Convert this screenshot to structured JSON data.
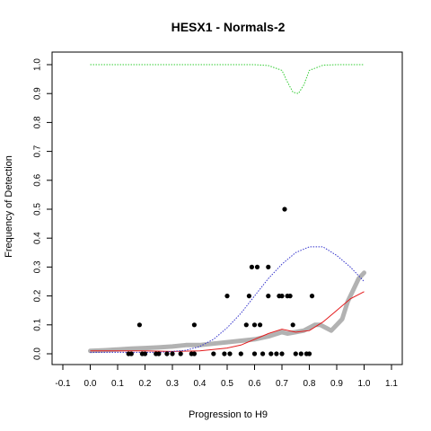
{
  "chart_data": {
    "type": "scatter",
    "title": "HESX1 - Normals-2",
    "xlabel": "Progression to H9",
    "ylabel": "Frequency of Detection",
    "xlim": [
      -0.1,
      1.1
    ],
    "ylim": [
      0,
      1.0
    ],
    "xticks": [
      "-0.1",
      "0.0",
      "0.1",
      "0.2",
      "0.3",
      "0.4",
      "0.5",
      "0.6",
      "0.7",
      "0.8",
      "0.9",
      "1.0",
      "1.1"
    ],
    "xtick_values": [
      -0.1,
      0.0,
      0.1,
      0.2,
      0.3,
      0.4,
      0.5,
      0.6,
      0.7,
      0.8,
      0.9,
      1.0,
      1.1
    ],
    "yticks": [
      "0.0",
      "0.1",
      "0.2",
      "0.3",
      "0.4",
      "0.5",
      "0.6",
      "0.7",
      "0.8",
      "0.9",
      "1.0"
    ],
    "ytick_values": [
      0.0,
      0.1,
      0.2,
      0.3,
      0.4,
      0.5,
      0.6,
      0.7,
      0.8,
      0.9,
      1.0
    ],
    "grid": false,
    "legend": "none",
    "colors": {
      "points": "#000000",
      "smoothed": "#aaaaaa",
      "fit": "#e41a1c",
      "upper": "#3333cc",
      "top": "#33cc33"
    },
    "series": [
      {
        "kind": "points",
        "x": [
          0.14,
          0.15,
          0.18,
          0.19,
          0.2,
          0.24,
          0.25,
          0.28,
          0.3,
          0.33,
          0.37,
          0.38,
          0.38,
          0.45,
          0.49,
          0.5,
          0.51,
          0.55,
          0.57,
          0.58,
          0.59,
          0.6,
          0.6,
          0.61,
          0.62,
          0.63,
          0.65,
          0.65,
          0.66,
          0.68,
          0.69,
          0.7,
          0.7,
          0.71,
          0.72,
          0.73,
          0.74,
          0.75,
          0.77,
          0.79,
          0.8,
          0.81
        ],
        "y": [
          0.0,
          0.0,
          0.1,
          0.0,
          0.0,
          0.0,
          0.0,
          0.0,
          0.0,
          0.0,
          0.0,
          0.1,
          0.0,
          0.0,
          0.0,
          0.2,
          0.0,
          0.0,
          0.1,
          0.2,
          0.3,
          0.1,
          0.0,
          0.3,
          0.1,
          0.0,
          0.2,
          0.3,
          0.0,
          0.0,
          0.2,
          0.2,
          0.0,
          0.5,
          0.2,
          0.2,
          0.1,
          0.0,
          0.0,
          0.0,
          0.0,
          0.2
        ]
      },
      {
        "kind": "smoothed",
        "x": [
          0.0,
          0.05,
          0.1,
          0.15,
          0.2,
          0.25,
          0.3,
          0.35,
          0.4,
          0.45,
          0.5,
          0.55,
          0.6,
          0.65,
          0.7,
          0.72,
          0.75,
          0.78,
          0.8,
          0.82,
          0.84,
          0.86,
          0.88,
          0.9,
          0.92,
          0.94,
          0.96,
          0.98,
          1.0
        ],
        "y": [
          0.01,
          0.012,
          0.015,
          0.018,
          0.02,
          0.022,
          0.025,
          0.03,
          0.03,
          0.035,
          0.04,
          0.045,
          0.05,
          0.06,
          0.075,
          0.07,
          0.075,
          0.08,
          0.09,
          0.1,
          0.1,
          0.09,
          0.08,
          0.1,
          0.12,
          0.18,
          0.22,
          0.26,
          0.28
        ]
      },
      {
        "kind": "fit",
        "x": [
          0.0,
          0.1,
          0.2,
          0.3,
          0.4,
          0.5,
          0.55,
          0.6,
          0.65,
          0.7,
          0.75,
          0.8,
          0.85,
          0.9,
          0.95,
          1.0
        ],
        "y": [
          0.01,
          0.01,
          0.01,
          0.008,
          0.01,
          0.02,
          0.03,
          0.05,
          0.07,
          0.085,
          0.075,
          0.08,
          0.11,
          0.15,
          0.19,
          0.215
        ]
      },
      {
        "kind": "upper",
        "x": [
          0.0,
          0.1,
          0.2,
          0.25,
          0.3,
          0.35,
          0.4,
          0.45,
          0.5,
          0.55,
          0.6,
          0.65,
          0.7,
          0.75,
          0.8,
          0.85,
          0.9,
          0.95,
          1.0
        ],
        "y": [
          0.005,
          0.005,
          0.005,
          0.005,
          0.008,
          0.012,
          0.025,
          0.05,
          0.09,
          0.14,
          0.2,
          0.26,
          0.31,
          0.35,
          0.37,
          0.37,
          0.34,
          0.3,
          0.25
        ]
      },
      {
        "kind": "top",
        "x": [
          0.0,
          0.1,
          0.2,
          0.3,
          0.4,
          0.5,
          0.6,
          0.65,
          0.7,
          0.72,
          0.74,
          0.76,
          0.78,
          0.8,
          0.85,
          0.9,
          1.0
        ],
        "y": [
          1.0,
          1.0,
          1.0,
          1.0,
          1.0,
          1.0,
          1.0,
          0.997,
          0.98,
          0.94,
          0.905,
          0.9,
          0.93,
          0.98,
          0.998,
          1.0,
          1.0
        ]
      }
    ]
  }
}
